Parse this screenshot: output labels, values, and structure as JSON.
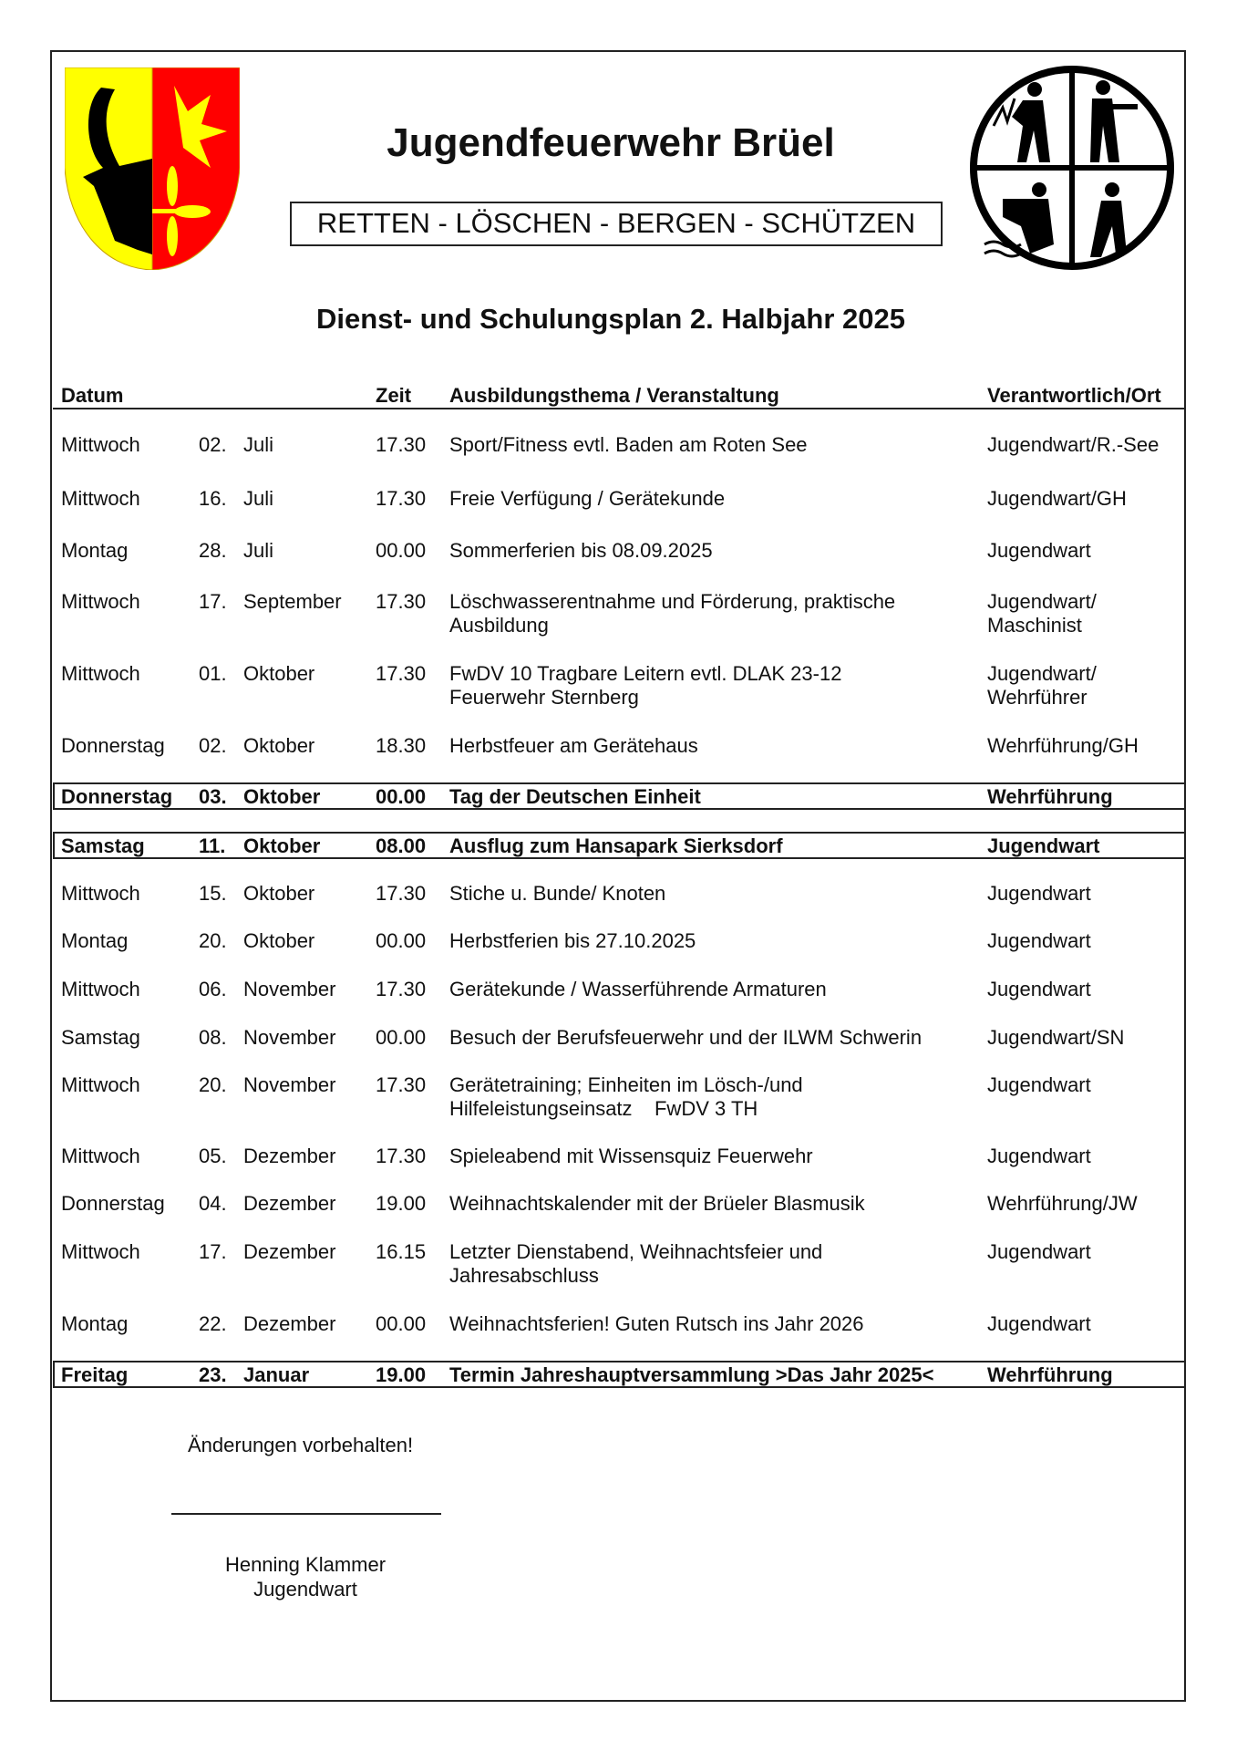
{
  "title": "Jugendfeuerwehr Brüel",
  "motto": "RETTEN - LÖSCHEN - BERGEN - SCHÜTZEN",
  "subtitle": "Dienst- und Schulungsplan 2. Halbjahr 2025",
  "columns": {
    "datum": "Datum",
    "zeit": "Zeit",
    "thema": "Ausbildungsthema / Veranstaltung",
    "verantwortlich": "Verantwortlich/Ort"
  },
  "colors": {
    "shield_yellow": "#ffff00",
    "shield_red": "#ff0000"
  },
  "rows": [
    {
      "tag": "Mittwoch",
      "nr": "02.",
      "monat": "Juli",
      "zeit": "17.30",
      "thema": "Sport/Fitness evtl. Baden am Roten See",
      "ort": "Jugendwart/R.-See",
      "style": "normal"
    },
    {
      "tag": "Mittwoch",
      "nr": "16.",
      "monat": "Juli",
      "zeit": "17.30",
      "thema": "Freie Verfügung / Gerätekunde",
      "ort": "Jugendwart/GH",
      "style": "normal"
    },
    {
      "tag": "Montag",
      "nr": "28.",
      "monat": "Juli",
      "zeit": "00.00",
      "thema": "Sommerferien bis 08.09.2025",
      "ort": "Jugendwart",
      "style": "normal"
    },
    {
      "tag": "Mittwoch",
      "nr": "17.",
      "monat": "September",
      "zeit": "17.30",
      "thema": "Löschwasserentnahme und Förderung, praktische\nAusbildung",
      "ort": "Jugendwart/\nMaschinist",
      "style": "normal"
    },
    {
      "tag": "Mittwoch",
      "nr": "01.",
      "monat": "Oktober",
      "zeit": "17.30",
      "thema": "FwDV 10 Tragbare Leitern evtl. DLAK 23-12\nFeuerwehr Sternberg",
      "ort": "Jugendwart/\nWehrführer",
      "style": "normal"
    },
    {
      "tag": "Donnerstag",
      "nr": "02.",
      "monat": "Oktober",
      "zeit": "18.30",
      "thema": "Herbstfeuer am Gerätehaus",
      "ort": "Wehrführung/GH",
      "style": "normal"
    },
    {
      "tag": "Donnerstag",
      "nr": "03.",
      "monat": "Oktober",
      "zeit": "00.00",
      "thema": "Tag der Deutschen Einheit",
      "ort": "Wehrführung",
      "style": "boxed"
    },
    {
      "tag": "Samstag",
      "nr": "11.",
      "monat": "Oktober",
      "zeit": "08.00",
      "thema": "Ausflug zum Hansapark Sierksdorf",
      "ort": "Jugendwart",
      "style": "boxed"
    },
    {
      "tag": "Mittwoch",
      "nr": "15.",
      "monat": "Oktober",
      "zeit": "17.30",
      "thema": "Stiche u. Bunde/ Knoten",
      "ort": "Jugendwart",
      "style": "normal"
    },
    {
      "tag": "Montag",
      "nr": "20.",
      "monat": "Oktober",
      "zeit": "00.00",
      "thema": "Herbstferien bis 27.10.2025",
      "ort": "Jugendwart",
      "style": "normal"
    },
    {
      "tag": "Mittwoch",
      "nr": "06.",
      "monat": "November",
      "zeit": "17.30",
      "thema": "Gerätekunde / Wasserführende Armaturen",
      "ort": "Jugendwart",
      "style": "normal"
    },
    {
      "tag": "Samstag",
      "nr": "08.",
      "monat": "November",
      "zeit": "00.00",
      "thema": "Besuch der Berufsfeuerwehr und der ILWM Schwerin",
      "ort": "Jugendwart/SN",
      "style": "normal"
    },
    {
      "tag": "Mittwoch",
      "nr": "20.",
      "monat": "November",
      "zeit": "17.30",
      "thema": "Gerätetraining; Einheiten im Lösch-/und\nHilfeleistungseinsatz    FwDV 3 TH",
      "ort": "Jugendwart",
      "style": "normal"
    },
    {
      "tag": "Mittwoch",
      "nr": "05.",
      "monat": "Dezember",
      "zeit": "17.30",
      "thema": "Spieleabend mit Wissensquiz Feuerwehr",
      "ort": "Jugendwart",
      "style": "normal"
    },
    {
      "tag": "Donnerstag",
      "nr": "04.",
      "monat": "Dezember",
      "zeit": "19.00",
      "thema": "Weihnachtskalender mit der Brüeler Blasmusik",
      "ort": "Wehrführung/JW",
      "style": "normal"
    },
    {
      "tag": "Mittwoch",
      "nr": "17.",
      "monat": "Dezember",
      "zeit": "16.15",
      "thema": "Letzter Dienstabend, Weihnachtsfeier und\nJahresabschluss",
      "ort": "Jugendwart",
      "style": "normal"
    },
    {
      "tag": "Montag",
      "nr": "22.",
      "monat": "Dezember",
      "zeit": "00.00",
      "thema": "Weihnachtsferien! Guten Rutsch ins Jahr 2026",
      "ort": "Jugendwart",
      "style": "normal"
    },
    {
      "tag": "Freitag",
      "nr": "23.",
      "monat": "Januar",
      "zeit": "19.00",
      "thema": "Termin Jahreshauptversammlung >Das Jahr 2025<",
      "ort": "Wehrführung",
      "style": "boxed"
    }
  ],
  "footer": {
    "note": "Änderungen vorbehalten!",
    "name": "Henning Klammer",
    "role": "Jugendwart"
  }
}
